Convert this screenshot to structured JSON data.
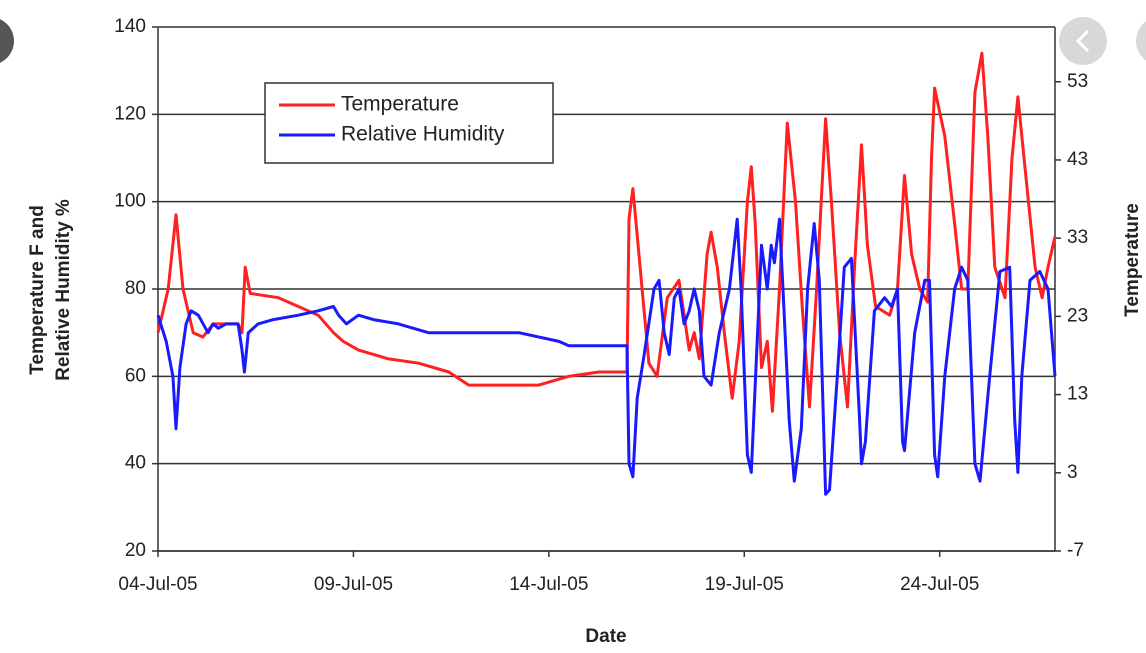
{
  "chart_data": {
    "type": "line",
    "ylabel": [
      "Temperature F and",
      "Relative Humidity %"
    ],
    "y2label": "Temperature",
    "xlabel": "Date",
    "xlim": [
      4,
      26.95
    ],
    "xticks": [
      {
        "value": 4,
        "label": "04-Jul-05"
      },
      {
        "value": 9,
        "label": "09-Jul-05"
      },
      {
        "value": 14,
        "label": "14-Jul-05"
      },
      {
        "value": 19,
        "label": "19-Jul-05"
      },
      {
        "value": 24,
        "label": "24-Jul-05"
      }
    ],
    "ylim": [
      20,
      140
    ],
    "yticks": [
      20,
      40,
      60,
      80,
      100,
      120,
      140
    ],
    "y2lim": [
      -7,
      60
    ],
    "y2ticks": [
      -7,
      3,
      13,
      23,
      33,
      43,
      53
    ],
    "grid": true,
    "legend": "upper left",
    "series": [
      {
        "name": "Temperature",
        "color": "#ff2020",
        "x": [
          4.0,
          4.26,
          4.46,
          4.64,
          4.9,
          5.15,
          5.41,
          6.05,
          6.15,
          6.23,
          6.36,
          7.08,
          7.59,
          8.1,
          8.49,
          8.74,
          9.13,
          9.9,
          10.67,
          11.44,
          11.95,
          13.74,
          14.51,
          15.28,
          16.0,
          16.05,
          16.15,
          16.56,
          16.77,
          17.03,
          17.33,
          17.59,
          17.72,
          17.85,
          18.05,
          18.15,
          18.31,
          18.49,
          18.69,
          18.87,
          19.08,
          19.18,
          19.28,
          19.44,
          19.59,
          19.72,
          19.9,
          20.1,
          20.31,
          20.49,
          20.67,
          20.85,
          21.08,
          21.23,
          21.44,
          21.64,
          21.82,
          22.0,
          22.15,
          22.36,
          22.72,
          22.92,
          23.1,
          23.28,
          23.49,
          23.69,
          23.79,
          23.87,
          24.13,
          24.38,
          24.56,
          24.72,
          24.9,
          25.08,
          25.23,
          25.41,
          25.67,
          25.85,
          26.0,
          26.18,
          26.44,
          26.62,
          26.77,
          26.95
        ],
        "values": [
          70,
          80,
          97,
          80,
          70,
          69,
          72,
          72,
          70,
          85,
          79,
          78,
          76,
          74,
          70,
          68,
          66,
          64,
          63,
          61,
          58,
          58,
          60,
          61,
          61,
          96,
          103,
          63,
          60,
          78,
          82,
          66,
          70,
          64,
          88,
          93,
          85,
          70,
          55,
          68,
          100,
          108,
          95,
          62,
          68,
          52,
          80,
          118,
          100,
          75,
          53,
          80,
          119,
          100,
          70,
          53,
          85,
          113,
          90,
          76,
          74,
          80,
          106,
          88,
          80,
          77,
          110,
          126,
          115,
          95,
          80,
          80,
          125,
          134,
          115,
          85,
          78,
          110,
          124,
          108,
          85,
          78,
          85,
          92
        ]
      },
      {
        "name": "Relative Humidity",
        "color": "#1a1aff",
        "x": [
          4.0,
          4.21,
          4.38,
          4.46,
          4.56,
          4.72,
          4.85,
          5.03,
          5.28,
          5.41,
          5.54,
          5.74,
          6.05,
          6.15,
          6.21,
          6.31,
          6.56,
          6.95,
          7.59,
          8.1,
          8.49,
          8.62,
          8.82,
          9.13,
          9.51,
          10.15,
          10.92,
          11.95,
          13.23,
          14.26,
          14.51,
          15.28,
          16.0,
          16.05,
          16.15,
          16.26,
          16.44,
          16.69,
          16.82,
          16.95,
          17.08,
          17.21,
          17.33,
          17.46,
          17.59,
          17.72,
          17.85,
          17.97,
          18.15,
          18.36,
          18.62,
          18.82,
          18.92,
          19.08,
          19.18,
          19.28,
          19.44,
          19.59,
          19.69,
          19.77,
          19.9,
          20.0,
          20.15,
          20.28,
          20.46,
          20.62,
          20.79,
          20.92,
          21.08,
          21.18,
          21.38,
          21.56,
          21.74,
          21.95,
          22.0,
          22.1,
          22.33,
          22.59,
          22.77,
          22.92,
          23.05,
          23.1,
          23.36,
          23.62,
          23.74,
          23.87,
          23.95,
          24.13,
          24.38,
          24.56,
          24.72,
          24.9,
          25.03,
          25.28,
          25.54,
          25.79,
          25.92,
          26.0,
          26.1,
          26.31,
          26.56,
          26.77,
          26.95
        ],
        "values": [
          74,
          68,
          60,
          48,
          62,
          72,
          75,
          74,
          70,
          72,
          71,
          72,
          72,
          66,
          61,
          70,
          72,
          73,
          74,
          75,
          76,
          74,
          72,
          74,
          73,
          72,
          70,
          70,
          70,
          68,
          67,
          67,
          67,
          40,
          37,
          55,
          65,
          80,
          82,
          70,
          65,
          78,
          80,
          72,
          75,
          80,
          75,
          60,
          58,
          70,
          80,
          96,
          80,
          42,
          38,
          58,
          90,
          80,
          90,
          86,
          96,
          78,
          50,
          36,
          48,
          80,
          95,
          82,
          33,
          34,
          60,
          85,
          87,
          50,
          40,
          45,
          75,
          78,
          76,
          80,
          45,
          43,
          70,
          82,
          82,
          42,
          37,
          60,
          80,
          85,
          82,
          40,
          36,
          60,
          84,
          85,
          50,
          38,
          60,
          82,
          84,
          80,
          60
        ]
      }
    ]
  }
}
